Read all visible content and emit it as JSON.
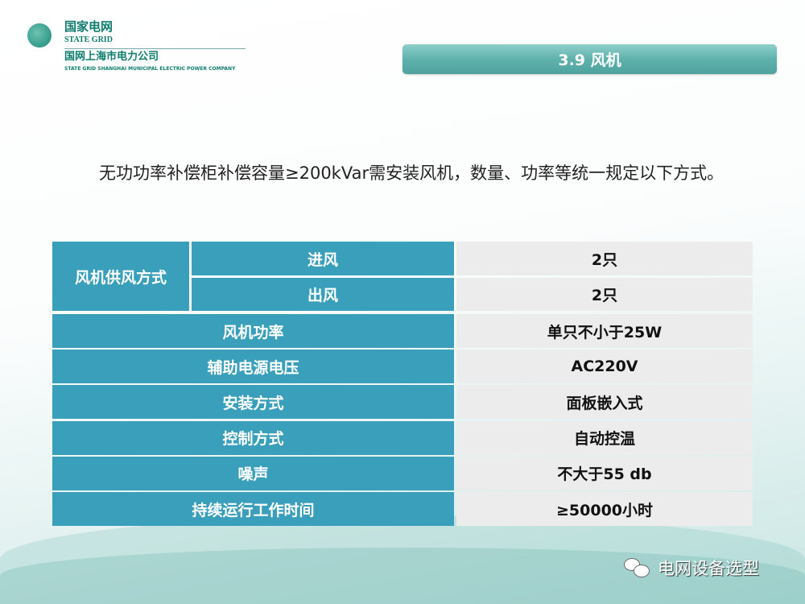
{
  "header": {
    "logo_cn": "国家电网",
    "logo_en": "STATE GRID",
    "company_cn": "国网上海市电力公司",
    "company_en": "STATE GRID SHANGHAI MUNICIPAL ELECTRIC POWER COMPANY"
  },
  "title": "3.9 风机",
  "intro": "无功功率补偿柜补偿容量≥200kVar需安装风机，数量、功率等统一规定以下方式。",
  "table": {
    "group_label": "风机供风方式",
    "sub_rows": [
      {
        "label": "进风",
        "value": "2只"
      },
      {
        "label": "出风",
        "value": "2只"
      }
    ],
    "rows": [
      {
        "label": "风机功率",
        "value": "单只不小于25W"
      },
      {
        "label": "辅助电源电压",
        "value": "AC220V"
      },
      {
        "label": "安装方式",
        "value": "面板嵌入式"
      },
      {
        "label": "控制方式",
        "value": "自动控温"
      },
      {
        "label": "噪声",
        "value": "不大于55 db"
      },
      {
        "label": "持续运行工作时间",
        "value": "≥50000小时"
      }
    ]
  },
  "footer": {
    "icon": "wechat-icon",
    "text": "电网设备选型"
  },
  "colors": {
    "header_cell": "#3a9fbb",
    "value_cell": "#ececec",
    "title_bar": "#5fb1ac"
  }
}
